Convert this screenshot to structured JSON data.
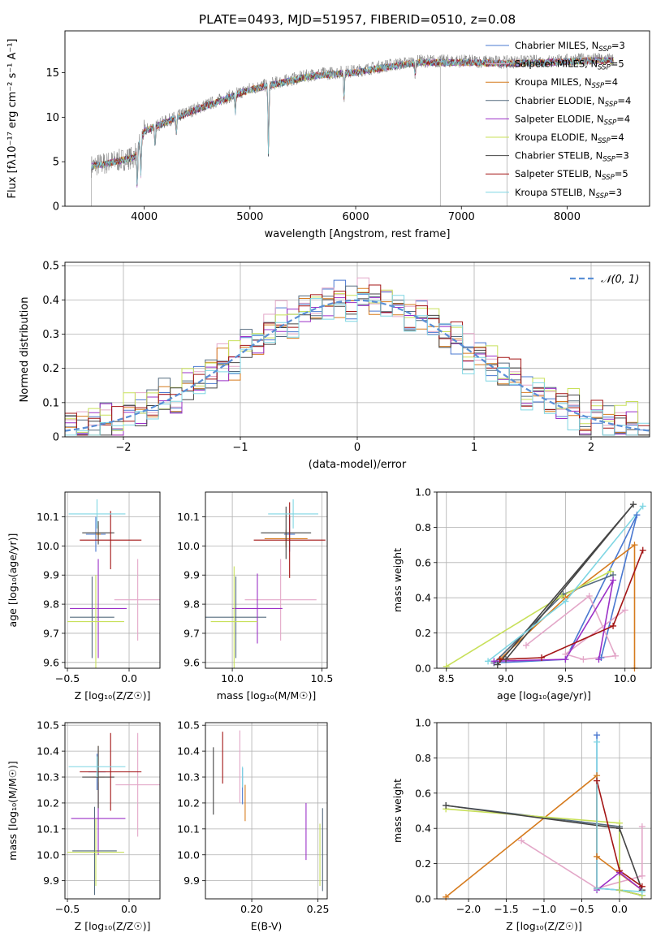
{
  "figure_title": "PLATE=0493, MJD=51957, FIBERID=0510, z=0.08",
  "colors": {
    "c_mil": "#4a78d0",
    "s_mil": "#e3a7c8",
    "k_mil": "#d67b1e",
    "c_elo": "#556b7f",
    "s_elo": "#9b30c7",
    "k_elo": "#c8e05a",
    "c_ste": "#454545",
    "s_ste": "#a31515",
    "k_ste": "#7fd6e3"
  },
  "chart_data": [
    {
      "id": "spectrum",
      "type": "line",
      "title": "PLATE=0493, MJD=51957, FIBERID=0510, z=0.08",
      "xlabel": "wavelength [Angstrom, rest frame]",
      "ylabel": "Flux [fλ10⁻¹⁷ erg cm⁻² s⁻¹ A⁻¹]",
      "xlim": [
        3250,
        8780
      ],
      "ylim": [
        0,
        19.7
      ],
      "xticks": [
        4000,
        5000,
        6000,
        7000,
        8000
      ],
      "yticks": [
        0,
        5,
        10,
        15
      ],
      "grid": false,
      "legend_position": "top-right",
      "legend": [
        {
          "label": "Chabrier MILES, N",
          "sub": "SSP",
          "tail": "=3",
          "color": "c_mil"
        },
        {
          "label": "Salpeter MILES, N",
          "sub": "SSP",
          "tail": "=5",
          "color": "s_mil"
        },
        {
          "label": "Kroupa MILES, N",
          "sub": "SSP",
          "tail": "=4",
          "color": "k_mil"
        },
        {
          "label": "Chabrier ELODIE, N",
          "sub": "SSP",
          "tail": "=4",
          "color": "c_elo"
        },
        {
          "label": "Salpeter ELODIE, N",
          "sub": "SSP",
          "tail": "=4",
          "color": "s_elo"
        },
        {
          "label": "Kroupa ELODIE, N",
          "sub": "SSP",
          "tail": "=4",
          "color": "k_elo"
        },
        {
          "label": "Chabrier STELIB, N",
          "sub": "SSP",
          "tail": "=3",
          "color": "c_ste"
        },
        {
          "label": "Salpeter STELIB, N",
          "sub": "SSP",
          "tail": "=5",
          "color": "s_ste"
        },
        {
          "label": "Kroupa STELIB, N",
          "sub": "SSP",
          "tail": "=3",
          "color": "k_ste"
        }
      ],
      "data_series": {
        "name": "data",
        "color": "#808080"
      },
      "continuum_x": [
        3500,
        3700,
        3900,
        4000,
        4200,
        4500,
        4800,
        5000,
        5300,
        5600,
        6000,
        6300,
        6600,
        7000,
        7400,
        7800,
        8200,
        8400
      ],
      "continuum_y": [
        4.5,
        5.0,
        5.5,
        8.5,
        9.5,
        11.0,
        12.3,
        13.2,
        14.0,
        14.8,
        15.2,
        15.8,
        16.3,
        16.3,
        16.2,
        16.3,
        16.5,
        16.5
      ],
      "absorption_features": [
        {
          "x": 3934,
          "depth": 4.5
        },
        {
          "x": 3968,
          "depth": 4.0
        },
        {
          "x": 4102,
          "depth": 2.5
        },
        {
          "x": 4304,
          "depth": 2.0
        },
        {
          "x": 4861,
          "depth": 2.0
        },
        {
          "x": 5175,
          "depth": 8.0
        },
        {
          "x": 5890,
          "depth": 3.0
        },
        {
          "x": 6563,
          "depth": 1.5
        }
      ],
      "gaps": [
        {
          "x": 3500,
          "to": 0.0
        },
        {
          "x": 6800,
          "to": 0.0
        },
        {
          "x": 7430,
          "to": 0.0
        }
      ]
    },
    {
      "id": "residuals",
      "type": "step",
      "xlabel": "(data-model)/error",
      "ylabel": "Normed distribution",
      "xlim": [
        -2.5,
        2.5
      ],
      "ylim": [
        0,
        0.51
      ],
      "xticks": [
        -2,
        -1,
        0,
        1,
        2
      ],
      "yticks": [
        0.0,
        0.1,
        0.2,
        0.3,
        0.4,
        0.5
      ],
      "grid": true,
      "legend_position": "top-right",
      "gaussian": {
        "name": "𝒩(0, 1)",
        "mean": 0,
        "sigma": 1,
        "color": "#5a8fd6"
      },
      "bin_edges": [
        -2.5,
        -2.4,
        -2.3,
        -2.2,
        -2.1,
        -2.0,
        -1.9,
        -1.8,
        -1.7,
        -1.6,
        -1.5,
        -1.4,
        -1.3,
        -1.2,
        -1.1,
        -1.0,
        -0.9,
        -0.8,
        -0.7,
        -0.6,
        -0.5,
        -0.4,
        -0.3,
        -0.2,
        -0.1,
        0.0,
        0.1,
        0.2,
        0.3,
        0.4,
        0.5,
        0.6,
        0.7,
        0.8,
        0.9,
        1.0,
        1.1,
        1.2,
        1.3,
        1.4,
        1.5,
        1.6,
        1.7,
        1.8,
        1.9,
        2.0,
        2.1,
        2.2,
        2.3,
        2.4,
        2.5
      ],
      "histograms": [
        {
          "color": "c_mil",
          "offset": 0.0
        },
        {
          "color": "s_mil",
          "offset": 0.012
        },
        {
          "color": "k_mil",
          "offset": -0.01
        },
        {
          "color": "c_elo",
          "offset": 0.006
        },
        {
          "color": "s_elo",
          "offset": -0.006
        },
        {
          "color": "k_elo",
          "offset": 0.015
        },
        {
          "color": "c_ste",
          "offset": -0.013
        },
        {
          "color": "s_ste",
          "offset": 0.004
        },
        {
          "color": "k_ste",
          "offset": -0.016
        }
      ],
      "variation": [
        0.01,
        -0.02,
        0.03,
        0.0,
        -0.03,
        0.02,
        0.04,
        -0.01,
        0.03,
        -0.04,
        0.02,
        0.05,
        -0.03,
        0.01,
        -0.05,
        0.04,
        0.02,
        -0.02,
        0.06,
        -0.04,
        0.03,
        -0.01,
        0.05,
        0.07,
        -0.06,
        0.02,
        -0.03,
        0.04,
        0.01,
        -0.05,
        0.06,
        -0.02,
        0.03,
        -0.04,
        0.01,
        0.05,
        -0.03,
        0.02,
        -0.01,
        0.04,
        -0.02,
        0.01,
        -0.03,
        0.02,
        0.0,
        -0.01,
        0.02,
        -0.02,
        0.01,
        0.0
      ]
    },
    {
      "id": "age_vs_Z",
      "type": "errorbar",
      "xlabel": "Z [log₁₀(Z/Z☉)]",
      "ylabel": "age  [log₁₀(age/yr)]",
      "xlim": [
        -0.52,
        0.25
      ],
      "ylim": [
        9.58,
        10.185
      ],
      "xticks": [
        -0.5,
        0.0
      ],
      "yticks": [
        9.6,
        9.7,
        9.8,
        9.9,
        10.0,
        10.1
      ],
      "grid": true,
      "points": [
        {
          "color": "c_mil",
          "x": -0.27,
          "xerr": 0.08,
          "y": 10.04,
          "yerr": 0.06
        },
        {
          "color": "s_mil",
          "x": 0.07,
          "xerr": 0.19,
          "y": 9.815,
          "yerr": 0.14
        },
        {
          "color": "k_mil",
          "x": -0.25,
          "xerr": 0.02,
          "y": 10.04,
          "yerr": 0.03
        },
        {
          "color": "c_elo",
          "x": -0.3,
          "xerr": 0.18,
          "y": 9.755,
          "yerr": 0.14
        },
        {
          "color": "s_elo",
          "x": -0.25,
          "xerr": 0.23,
          "y": 9.785,
          "yerr": 0.17
        },
        {
          "color": "k_elo",
          "x": -0.27,
          "xerr": 0.23,
          "y": 9.74,
          "yerr": 0.16
        },
        {
          "color": "c_ste",
          "x": -0.25,
          "xerr": 0.13,
          "y": 10.045,
          "yerr": 0.04
        },
        {
          "color": "s_ste",
          "x": -0.15,
          "xerr": 0.25,
          "y": 10.02,
          "yerr": 0.1
        },
        {
          "color": "k_ste",
          "x": -0.26,
          "xerr": 0.23,
          "y": 10.11,
          "yerr": 0.05
        }
      ]
    },
    {
      "id": "age_vs_mass",
      "type": "errorbar",
      "xlabel": "mass [log₁₀(M/M☉)]",
      "ylabel": "",
      "xlim": [
        9.85,
        10.53
      ],
      "ylim": [
        9.58,
        10.185
      ],
      "xticks": [
        10.0,
        10.5
      ],
      "yticks": [
        9.6,
        9.7,
        9.8,
        9.9,
        10.0,
        10.1
      ],
      "grid": true,
      "points": [
        {
          "color": "c_mil",
          "x": 10.32,
          "xerr": 0.03,
          "y": 10.04,
          "yerr": 0.06
        },
        {
          "color": "s_mil",
          "x": 10.27,
          "xerr": 0.2,
          "y": 9.815,
          "yerr": 0.14
        },
        {
          "color": "k_mil",
          "x": 10.3,
          "xerr": 0.12,
          "y": 10.025,
          "yerr": 0.03
        },
        {
          "color": "c_elo",
          "x": 10.02,
          "xerr": 0.17,
          "y": 9.755,
          "yerr": 0.14
        },
        {
          "color": "s_elo",
          "x": 10.14,
          "xerr": 0.14,
          "y": 9.785,
          "yerr": 0.12
        },
        {
          "color": "k_elo",
          "x": 10.01,
          "xerr": 0.13,
          "y": 9.74,
          "yerr": 0.19
        },
        {
          "color": "c_ste",
          "x": 10.3,
          "xerr": 0.14,
          "y": 10.045,
          "yerr": 0.09
        },
        {
          "color": "s_ste",
          "x": 10.32,
          "xerr": 0.2,
          "y": 10.02,
          "yerr": 0.13
        },
        {
          "color": "k_ste",
          "x": 10.34,
          "xerr": 0.14,
          "y": 10.11,
          "yerr": 0.05
        }
      ]
    },
    {
      "id": "weights_vs_age",
      "type": "line",
      "xlabel": "age  [log₁₀(age/yr)]",
      "ylabel": "mass weight",
      "xlim": [
        8.42,
        10.22
      ],
      "ylim": [
        0.0,
        1.0
      ],
      "xticks": [
        8.5,
        9.0,
        9.5,
        10.0
      ],
      "yticks": [
        0.0,
        0.2,
        0.4,
        0.6,
        0.8,
        1.0
      ],
      "grid": true,
      "series": [
        {
          "color": "c_mil",
          "x": [
            9.8,
            10.1,
            9.5,
            8.9
          ],
          "y": [
            0.06,
            0.87,
            0.05,
            0.03
          ]
        },
        {
          "color": "s_mil",
          "x": [
            9.17,
            9.7,
            9.92,
            9.65,
            9.5,
            10.0
          ],
          "y": [
            0.13,
            0.41,
            0.07,
            0.05,
            0.08,
            0.33
          ]
        },
        {
          "color": "k_mil",
          "x": [
            10.08,
            10.08,
            9.5,
            8.95
          ],
          "y": [
            0.0,
            0.7,
            0.4,
            0.05
          ]
        },
        {
          "color": "c_elo",
          "x": [
            8.9,
            9.48,
            9.9
          ],
          "y": [
            0.03,
            0.42,
            0.53
          ]
        },
        {
          "color": "s_elo",
          "x": [
            9.78,
            9.9,
            9.5,
            8.9
          ],
          "y": [
            0.05,
            0.5,
            0.05,
            0.04
          ]
        },
        {
          "color": "k_elo",
          "x": [
            8.5,
            9.47,
            9.88
          ],
          "y": [
            0.01,
            0.41,
            0.55
          ]
        },
        {
          "color": "c_ste",
          "x": [
            8.93,
            10.07,
            9.0
          ],
          "y": [
            0.02,
            0.93,
            0.05
          ]
        },
        {
          "color": "s_ste",
          "x": [
            10.15,
            9.9,
            9.3,
            8.95
          ],
          "y": [
            0.67,
            0.24,
            0.06,
            0.05
          ]
        },
        {
          "color": "k_ste",
          "x": [
            10.15,
            9.5,
            8.85
          ],
          "y": [
            0.92,
            0.38,
            0.04
          ]
        }
      ]
    },
    {
      "id": "mass_vs_Z",
      "type": "errorbar",
      "xlabel": "Z [log₁₀(Z/Z☉)]",
      "ylabel": "mass [log₁₀(M/M☉)]",
      "xlim": [
        -0.52,
        0.25
      ],
      "ylim": [
        9.83,
        10.51
      ],
      "xticks": [
        -0.5,
        0.0
      ],
      "yticks": [
        9.9,
        10.0,
        10.1,
        10.2,
        10.3,
        10.4,
        10.5
      ],
      "grid": true,
      "points": [
        {
          "color": "c_mil",
          "x": -0.26,
          "xerr": 0.07,
          "y": 10.32,
          "yerr": 0.07
        },
        {
          "color": "s_mil",
          "x": 0.07,
          "xerr": 0.18,
          "y": 10.27,
          "yerr": 0.2
        },
        {
          "color": "k_mil",
          "x": -0.25,
          "xerr": 0.05,
          "y": 10.3,
          "yerr": 0.12
        },
        {
          "color": "c_elo",
          "x": -0.28,
          "xerr": 0.18,
          "y": 10.015,
          "yerr": 0.17
        },
        {
          "color": "s_elo",
          "x": -0.25,
          "xerr": 0.22,
          "y": 10.14,
          "yerr": 0.14
        },
        {
          "color": "k_elo",
          "x": -0.27,
          "xerr": 0.23,
          "y": 10.01,
          "yerr": 0.13
        },
        {
          "color": "c_ste",
          "x": -0.25,
          "xerr": 0.13,
          "y": 10.3,
          "yerr": 0.12
        },
        {
          "color": "s_ste",
          "x": -0.15,
          "xerr": 0.25,
          "y": 10.32,
          "yerr": 0.15
        },
        {
          "color": "k_ste",
          "x": -0.26,
          "xerr": 0.23,
          "y": 10.34,
          "yerr": 0.04
        }
      ]
    },
    {
      "id": "mass_vs_ebv",
      "type": "errorbar",
      "xlabel": "E(B-V)",
      "ylabel": "",
      "xlim": [
        0.165,
        0.257
      ],
      "ylim": [
        9.83,
        10.51
      ],
      "xticks": [
        0.2,
        0.25
      ],
      "yticks": [
        9.9,
        10.0,
        10.1,
        10.2,
        10.3,
        10.4,
        10.5
      ],
      "grid": true,
      "points": [
        {
          "color": "c_mil",
          "x": 0.193,
          "xerr": 0.0,
          "y": 10.265,
          "yerr": 0.07
        },
        {
          "color": "s_mil",
          "x": 0.191,
          "xerr": 0.0,
          "y": 10.34,
          "yerr": 0.14
        },
        {
          "color": "k_mil",
          "x": 0.195,
          "xerr": 0.0,
          "y": 10.2,
          "yerr": 0.07
        },
        {
          "color": "c_elo",
          "x": 0.2535,
          "xerr": 0.0,
          "y": 10.02,
          "yerr": 0.16
        },
        {
          "color": "s_elo",
          "x": 0.241,
          "xerr": 0.0,
          "y": 10.09,
          "yerr": 0.11
        },
        {
          "color": "k_elo",
          "x": 0.2515,
          "xerr": 0.0,
          "y": 10.0,
          "yerr": 0.12
        },
        {
          "color": "c_ste",
          "x": 0.171,
          "xerr": 0.0,
          "y": 10.285,
          "yerr": 0.13
        },
        {
          "color": "s_ste",
          "x": 0.178,
          "xerr": 0.0,
          "y": 10.375,
          "yerr": 0.1
        },
        {
          "color": "k_ste",
          "x": 0.193,
          "xerr": 0.0,
          "y": 10.3,
          "yerr": 0.04
        }
      ]
    },
    {
      "id": "weights_vs_Z",
      "type": "line",
      "xlabel": "Z [log₁₀(Z/Z☉)]",
      "ylabel": "mass weight",
      "xlim": [
        -2.42,
        0.42
      ],
      "ylim": [
        0.0,
        1.0
      ],
      "xticks": [
        -2.0,
        -1.5,
        -1.0,
        -0.5,
        0.0
      ],
      "yticks": [
        0.0,
        0.2,
        0.4,
        0.6,
        0.8,
        1.0
      ],
      "grid": true,
      "series": [
        {
          "color": "c_mil",
          "x": [
            -0.3,
            -0.3,
            0.0,
            0.3
          ],
          "y": [
            0.93,
            0.06,
            0.05,
            0.02
          ]
        },
        {
          "color": "s_mil",
          "x": [
            -1.3,
            -0.3,
            0.3,
            0.3
          ],
          "y": [
            0.33,
            0.06,
            0.13,
            0.41
          ]
        },
        {
          "color": "k_mil",
          "x": [
            -2.3,
            -0.3,
            -0.3,
            0.3
          ],
          "y": [
            0.01,
            0.7,
            0.24,
            0.05
          ]
        },
        {
          "color": "c_elo",
          "x": [
            -2.3,
            0.0,
            0.0,
            0.3
          ],
          "y": [
            0.53,
            0.41,
            0.05,
            0.02
          ]
        },
        {
          "color": "s_elo",
          "x": [
            -0.3,
            0.0,
            0.3
          ],
          "y": [
            0.05,
            0.15,
            0.05
          ]
        },
        {
          "color": "k_elo",
          "x": [
            -2.3,
            0.0,
            0.0,
            0.3
          ],
          "y": [
            0.51,
            0.43,
            0.05,
            0.02
          ]
        },
        {
          "color": "c_ste",
          "x": [
            -2.3,
            0.0,
            0.3
          ],
          "y": [
            0.53,
            0.4,
            0.05
          ]
        },
        {
          "color": "s_ste",
          "x": [
            -0.3,
            -0.3,
            0.0,
            0.3
          ],
          "y": [
            0.06,
            0.67,
            0.16,
            0.07
          ]
        },
        {
          "color": "k_ste",
          "x": [
            -0.3,
            -0.3,
            0.3
          ],
          "y": [
            0.89,
            0.06,
            0.04
          ]
        }
      ]
    }
  ]
}
